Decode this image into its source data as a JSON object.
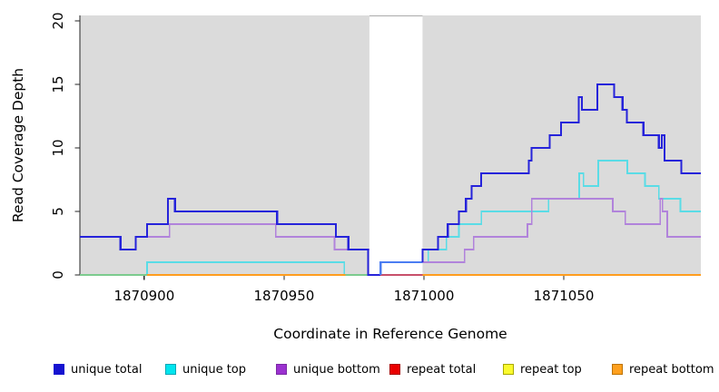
{
  "figure": {
    "title": "",
    "xlabel": "Coordinate in Reference Genome",
    "ylabel": "Read Coverage Depth",
    "background": "#ffffff"
  },
  "chart_data": {
    "type": "line",
    "subtype": "step-coverage-plot",
    "title": "",
    "xlabel": "Coordinate in Reference Genome",
    "ylabel": "Read Coverage Depth",
    "xlim": [
      1870877,
      1871099
    ],
    "ylim": [
      0,
      20
    ],
    "x_ticks": [
      1870900,
      1870950,
      1871000,
      1871050
    ],
    "y_ticks": [
      0,
      5,
      10,
      15,
      20
    ],
    "grid": false,
    "legend_position": "bottom",
    "panel": {
      "bg_color": "#DBDBDB",
      "masked_band_x": [
        1870980.5,
        1870999.5
      ],
      "masked_band_color": "#FFFFFF",
      "masked_band_top_edge_color": "#ABABAB"
    },
    "series": [
      {
        "name": "unique total",
        "color": "#2623DA",
        "width": 2.2,
        "parts": [
          {
            "steps": [
              [
                1870877,
                3
              ],
              [
                1870891.5,
                2
              ],
              [
                1870897,
                3
              ],
              [
                1870901,
                4
              ],
              [
                1870908.5,
                6
              ],
              [
                1870911,
                5
              ],
              [
                1870947.5,
                4
              ],
              [
                1870968.5,
                3
              ],
              [
                1870973,
                2
              ],
              [
                1870980,
                0
              ]
            ],
            "x_end": 1870984.5
          },
          {
            "color": "#4B7DF2",
            "steps": [
              [
                1870984.5,
                0
              ],
              [
                1870984.5,
                1
              ]
            ],
            "x_end": 1870999.5
          },
          {
            "steps": [
              [
                1870999.5,
                1
              ],
              [
                1870999.5,
                2
              ],
              [
                1871005,
                3
              ],
              [
                1871008.5,
                4
              ],
              [
                1871012.5,
                5
              ],
              [
                1871015,
                6
              ],
              [
                1871017,
                7
              ],
              [
                1871020.5,
                8
              ],
              [
                1871037.5,
                9
              ],
              [
                1871038.5,
                10
              ],
              [
                1871045,
                11
              ],
              [
                1871049,
                12
              ],
              [
                1871055.3,
                14
              ],
              [
                1871056.5,
                13
              ],
              [
                1871062,
                15
              ],
              [
                1871068,
                14
              ],
              [
                1871071,
                13
              ],
              [
                1871072.5,
                12
              ],
              [
                1871078.5,
                11
              ],
              [
                1871084,
                10
              ],
              [
                1871085,
                11
              ],
              [
                1871086,
                9
              ],
              [
                1871092,
                8
              ]
            ],
            "x_end": 1871099
          }
        ]
      },
      {
        "name": "unique top",
        "color": "#5ADCE6",
        "width": 1.7,
        "parts": [
          {
            "steps": [
              [
                1870877,
                0
              ],
              [
                1870901,
                1
              ],
              [
                1870971.5,
                0
              ]
            ],
            "x_end": 1870980.5
          },
          {
            "steps": [
              [
                1871000,
                1
              ],
              [
                1871001.5,
                2
              ],
              [
                1871008,
                3
              ],
              [
                1871012.5,
                4
              ],
              [
                1871020.5,
                5
              ],
              [
                1871044.5,
                6
              ],
              [
                1871055.5,
                8
              ],
              [
                1871057,
                7
              ],
              [
                1871062.3,
                9
              ],
              [
                1871072.7,
                8
              ],
              [
                1871079,
                7
              ],
              [
                1871084,
                6
              ],
              [
                1871091.7,
                5
              ]
            ],
            "x_end": 1871099
          }
        ]
      },
      {
        "name": "unique bottom",
        "color": "#B183DB",
        "width": 1.7,
        "parts": [
          {
            "steps": [
              [
                1870901,
                3
              ],
              [
                1870909,
                4
              ],
              [
                1870947,
                3
              ],
              [
                1870968,
                2
              ]
            ],
            "x_end": 1870980.5
          },
          {
            "steps": [
              [
                1870999.5,
                2
              ],
              [
                1870999.5,
                1
              ],
              [
                1871014.5,
                2
              ],
              [
                1871017.8,
                3
              ],
              [
                1871037,
                4
              ],
              [
                1871038.5,
                6
              ],
              [
                1871067.5,
                5
              ],
              [
                1871072,
                4
              ],
              [
                1871084.5,
                6
              ],
              [
                1871085.3,
                5
              ],
              [
                1871087,
                3
              ]
            ],
            "x_end": 1871099
          }
        ]
      },
      {
        "name": "repeat total",
        "color": "#C8506B",
        "width": 1.7,
        "parts": [
          {
            "steps": [
              [
                1870980.5,
                0
              ]
            ],
            "x_end": 1870999.5
          }
        ]
      },
      {
        "name": "repeat top",
        "color": "#F0F000",
        "width": 1.7,
        "note": "depth 0 across plot, hidden beneath other series",
        "parts": []
      },
      {
        "name": "repeat bottom",
        "color": "#FF9D1E",
        "width": 1.7,
        "parts": [
          {
            "steps": [
              [
                1870901,
                0
              ]
            ],
            "x_end": 1870972
          },
          {
            "steps": [
              [
                1870999.5,
                0
              ]
            ],
            "x_end": 1871099
          }
        ]
      }
    ],
    "overlap_segments": [
      {
        "color": "#7CCB8E",
        "steps": [
          [
            1870877,
            0
          ]
        ],
        "x_end": 1870901,
        "note": "unique top + repeat bottom both at depth 0"
      },
      {
        "color": "#7CCB8E",
        "steps": [
          [
            1870972,
            0
          ]
        ],
        "x_end": 1870980.5,
        "note": "unique top + repeat bottom both at depth 0"
      }
    ],
    "legend": [
      {
        "label": "unique total",
        "fill": "#1512D0",
        "border": "#1512D0"
      },
      {
        "label": "unique top",
        "fill": "#00E5EE",
        "border": "#00A6B6"
      },
      {
        "label": "unique bottom",
        "fill": "#9B31D0",
        "border": "#7A28A4"
      },
      {
        "label": "repeat total",
        "fill": "#EA0000",
        "border": "#A80000"
      },
      {
        "label": "repeat top",
        "fill": "#FAFA2E",
        "border": "#A8A800"
      },
      {
        "label": "repeat bottom",
        "fill": "#FFA01E",
        "border": "#BD7200"
      }
    ]
  }
}
